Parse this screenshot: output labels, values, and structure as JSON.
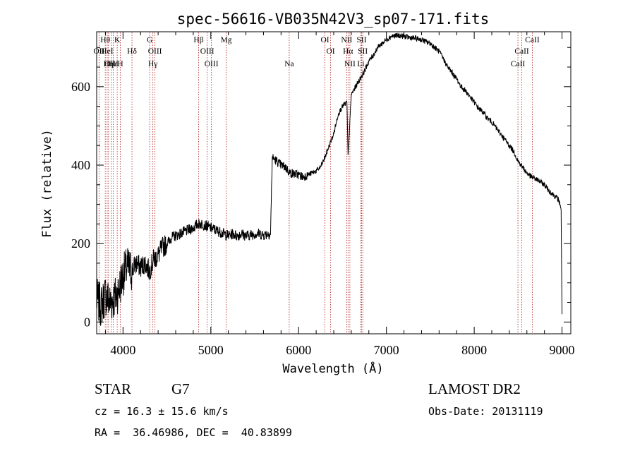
{
  "chart_data": {
    "type": "line",
    "title": "spec-56616-VB035N42V3_sp07-171.fits",
    "xlabel": "Wavelength (Å)",
    "ylabel": "Flux (relative)",
    "xlim": [
      3700,
      9100
    ],
    "ylim": [
      -30,
      740
    ],
    "xticks": [
      4000,
      5000,
      6000,
      7000,
      8000,
      9000
    ],
    "xtick_labels": [
      "4000",
      "5000",
      "6000",
      "7000",
      "8000",
      "9000"
    ],
    "yticks": [
      0,
      200,
      400,
      600
    ],
    "ytick_labels": [
      "0",
      "200",
      "400",
      "600"
    ],
    "grid": false,
    "series": [
      {
        "x": [
          3700,
          3750,
          3800,
          3850,
          3900,
          3950,
          4000,
          4050,
          4100,
          4150,
          4200,
          4250,
          4300,
          4350,
          4400,
          4450,
          4500,
          4550,
          4600,
          4650,
          4700,
          4750,
          4800,
          4850,
          4900,
          4950,
          5000,
          5050,
          5100,
          5150,
          5200,
          5250,
          5300,
          5350,
          5400,
          5450,
          5500,
          5550,
          5600,
          5650,
          5680,
          5700,
          5750,
          5800,
          5850,
          5900,
          5950,
          6000,
          6050,
          6100,
          6150,
          6200,
          6250,
          6300,
          6350,
          6400,
          6450,
          6500,
          6550,
          6563,
          6600,
          6650,
          6700,
          6750,
          6800,
          6850,
          6900,
          6950,
          7000,
          7050,
          7100,
          7150,
          7200,
          7250,
          7300,
          7350,
          7400,
          7450,
          7500,
          7550,
          7600,
          7650,
          7700,
          7750,
          7800,
          7850,
          7900,
          7950,
          8000,
          8050,
          8100,
          8150,
          8200,
          8250,
          8300,
          8350,
          8400,
          8450,
          8500,
          8550,
          8600,
          8650,
          8700,
          8750,
          8800,
          8850,
          8900,
          8950,
          8980,
          8990,
          9000
        ],
        "y": [
          60,
          40,
          70,
          50,
          60,
          80,
          120,
          140,
          130,
          150,
          140,
          150,
          130,
          160,
          170,
          190,
          200,
          215,
          220,
          225,
          230,
          235,
          240,
          250,
          250,
          245,
          240,
          235,
          230,
          225,
          220,
          225,
          220,
          225,
          220,
          222,
          225,
          225,
          222,
          225,
          225,
          420,
          410,
          400,
          395,
          380,
          378,
          375,
          370,
          375,
          380,
          385,
          395,
          420,
          450,
          480,
          530,
          550,
          560,
          420,
          580,
          600,
          620,
          640,
          665,
          680,
          700,
          710,
          720,
          728,
          730,
          730,
          728,
          726,
          724,
          722,
          720,
          715,
          710,
          700,
          690,
          670,
          650,
          635,
          620,
          600,
          590,
          575,
          560,
          545,
          535,
          520,
          510,
          495,
          480,
          465,
          450,
          435,
          410,
          395,
          380,
          370,
          365,
          358,
          350,
          335,
          325,
          315,
          300,
          285,
          20
        ]
      }
    ],
    "emission_lines": [
      {
        "name": "Hθ",
        "x": 3798,
        "row": 1
      },
      {
        "name": "OII",
        "x": 3727,
        "row": 2
      },
      {
        "name": "OIII",
        "x": 3869,
        "row": 3
      },
      {
        "name": "Hε",
        "x": 3889,
        "row": 3
      },
      {
        "name": "HeI",
        "x": 3820,
        "row": 2
      },
      {
        "name": "Hη",
        "x": 3835,
        "row": 3
      },
      {
        "name": "K",
        "x": 3934,
        "row": 1
      },
      {
        "name": "H",
        "x": 3969,
        "row": 3
      },
      {
        "name": "Hδ",
        "x": 4102,
        "row": 2
      },
      {
        "name": "G",
        "x": 4304,
        "row": 1
      },
      {
        "name": "OIII",
        "x": 4364,
        "row": 2
      },
      {
        "name": "Hγ",
        "x": 4340,
        "row": 3
      },
      {
        "name": "Hβ",
        "x": 4861,
        "row": 1
      },
      {
        "name": "OIII",
        "x": 4959,
        "row": 2
      },
      {
        "name": "OIII",
        "x": 5007,
        "row": 3
      },
      {
        "name": "Mg",
        "x": 5175,
        "row": 1
      },
      {
        "name": "Na",
        "x": 5893,
        "row": 3
      },
      {
        "name": "OI",
        "x": 6300,
        "row": 1
      },
      {
        "name": "OI",
        "x": 6364,
        "row": 2
      },
      {
        "name": "NII",
        "x": 6548,
        "row": 1
      },
      {
        "name": "Hα",
        "x": 6563,
        "row": 2
      },
      {
        "name": "NII",
        "x": 6584,
        "row": 3
      },
      {
        "name": "SII",
        "x": 6717,
        "row": 1
      },
      {
        "name": "SII",
        "x": 6731,
        "row": 2
      },
      {
        "name": "Li",
        "x": 6708,
        "row": 3
      },
      {
        "name": "CaII",
        "x": 8662,
        "row": 1
      },
      {
        "name": "CaII",
        "x": 8542,
        "row": 2
      },
      {
        "name": "CaII",
        "x": 8498,
        "row": 3
      }
    ]
  },
  "info": {
    "object_class": "STAR",
    "subclass": "G7",
    "survey": "LAMOST DR2",
    "redshift": "cz = 16.3 ± 15.6 km/s",
    "obs_date": "Obs-Date: 20131119",
    "coords": "RA =  36.46986, DEC =  40.83899"
  },
  "colors": {
    "line": "#000000",
    "emission_marker": "#b22222"
  }
}
